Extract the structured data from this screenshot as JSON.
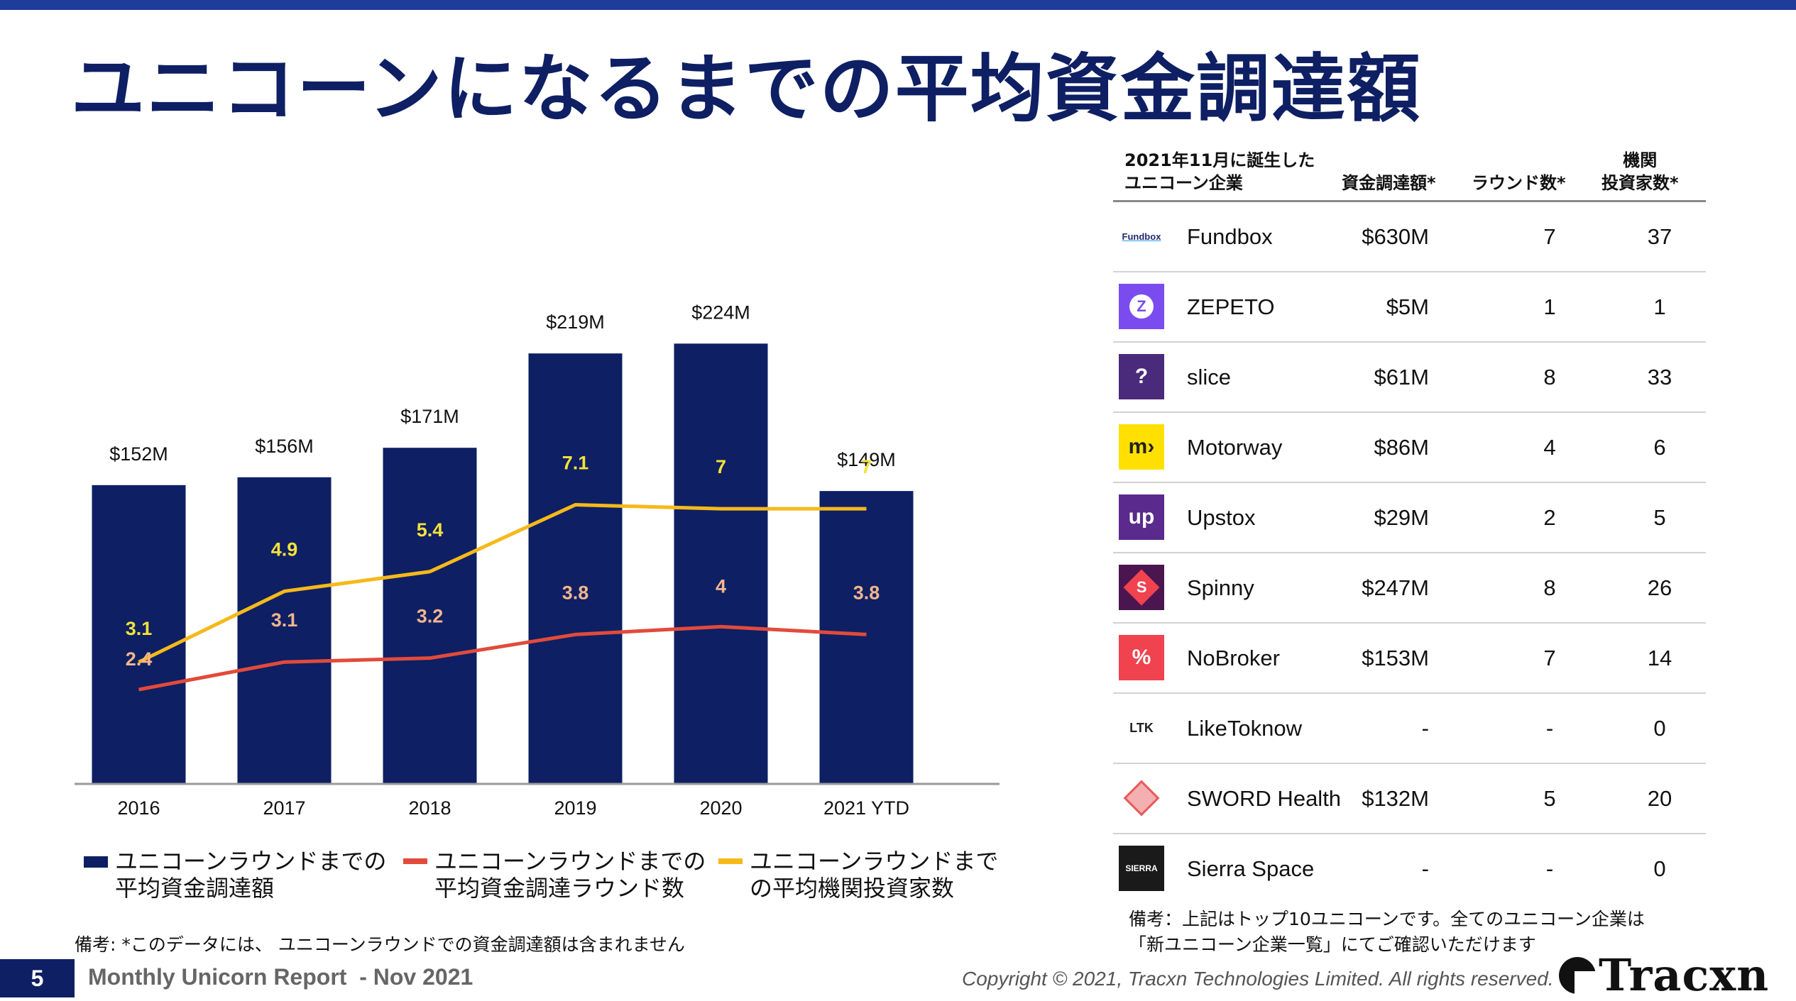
{
  "header": {
    "title": "ユニコーンになるまでの平均資金調達額"
  },
  "chart_data": {
    "type": "bar",
    "categories": [
      "2016",
      "2017",
      "2018",
      "2019",
      "2020",
      "2021 YTD"
    ],
    "series": [
      {
        "name": "ユニコーンラウンドまでの平均資金調達額",
        "kind": "bar",
        "color": "#0e1f63",
        "values": [
          152,
          156,
          171,
          219,
          224,
          149
        ],
        "labels": [
          "$152M",
          "$156M",
          "$171M",
          "$219M",
          "$224M",
          "$149M"
        ]
      },
      {
        "name": "ユニコーンラウンドまでの平均資金調達ラウンド数",
        "kind": "line",
        "color": "#e24a3b",
        "values": [
          2.4,
          3.1,
          3.2,
          3.8,
          4,
          3.8
        ],
        "labels": [
          "2.4",
          "3.1",
          "3.2",
          "3.8",
          "4",
          "3.8"
        ]
      },
      {
        "name": "ユニコーンラウンドまでの平均機関投資家数",
        "kind": "line",
        "color": "#f6b91a",
        "values": [
          3.1,
          4.9,
          5.4,
          7.1,
          7,
          7
        ],
        "labels": [
          "3.1",
          "4.9",
          "5.4",
          "7.1",
          "7",
          "7"
        ]
      }
    ],
    "ylim_bar": [
      0,
      240
    ],
    "ylim_line": [
      0,
      12
    ]
  },
  "legend": {
    "bar_line1": "ユニコーンラウンドまでの",
    "bar_line2": "平均資金調達額",
    "red_line1": "ユニコーンラウンドまでの",
    "red_line2": "平均資金調達ラウンド数",
    "yellow_line1": "ユニコーンラウンドまで",
    "yellow_line2": "の平均機関投資家数"
  },
  "note_left": "備考: *このデータには、 ユニコーンラウンドでの資金調達額は含まれません",
  "table": {
    "headers": {
      "company_line1": "2021年11月に誕生した",
      "company_line2": "ユニコーン企業",
      "amount": "資金調達額*",
      "rounds": "ラウンド数*",
      "investors_line1": "機関",
      "investors_line2": "投資家数*"
    },
    "rows": [
      {
        "name": "Fundbox",
        "amount": "$630M",
        "rounds": "7",
        "investors": "37",
        "logo_text": "Fundbox",
        "logo_color": "#ffffff"
      },
      {
        "name": "ZEPETO",
        "amount": "$5M",
        "rounds": "1",
        "investors": "1",
        "logo_text": "Z",
        "logo_color": "#7a4cf0"
      },
      {
        "name": "slice",
        "amount": "$61M",
        "rounds": "8",
        "investors": "33",
        "logo_text": "?",
        "logo_color": "#4a2a7a"
      },
      {
        "name": "Motorway",
        "amount": "$86M",
        "rounds": "4",
        "investors": "6",
        "logo_text": "m›",
        "logo_color": "#ffe000"
      },
      {
        "name": "Upstox",
        "amount": "$29M",
        "rounds": "2",
        "investors": "5",
        "logo_text": "up",
        "logo_color": "#5a2a8c"
      },
      {
        "name": "Spinny",
        "amount": "$247M",
        "rounds": "8",
        "investors": "26",
        "logo_text": "S",
        "logo_color": "#4b1550"
      },
      {
        "name": "NoBroker",
        "amount": "$153M",
        "rounds": "7",
        "investors": "14",
        "logo_text": "%",
        "logo_color": "#f0424f"
      },
      {
        "name": "LikeToknow",
        "amount": "-",
        "rounds": "-",
        "investors": "0",
        "logo_text": "LTK",
        "logo_color": "#ffffff"
      },
      {
        "name": "SWORD Health",
        "amount": "$132M",
        "rounds": "5",
        "investors": "20",
        "logo_text": "",
        "logo_color": "#e85a5a"
      },
      {
        "name": "Sierra Space",
        "amount": "-",
        "rounds": "-",
        "investors": "0",
        "logo_text": "SIERRA",
        "logo_color": "#1a1a1a"
      }
    ]
  },
  "note_right_line1": "備考：上記はトップ10ユニコーンです。全てのユニコーン企業は",
  "note_right_line2": "「新ユニコーン企業一覧」にてご確認いただけます",
  "footer": {
    "page": "5",
    "report": "Monthly Unicorn Report  - Nov 2021",
    "copyright": "Copyright © 2021, Tracxn Technologies Limited. All rights reserved.",
    "brand": "Tracxn"
  }
}
